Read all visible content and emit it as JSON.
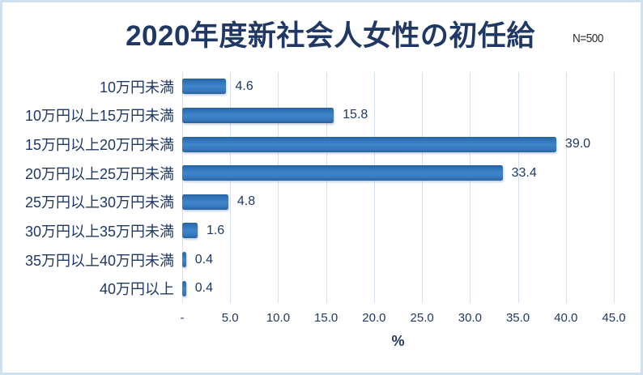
{
  "chart_data": {
    "type": "bar",
    "orientation": "horizontal",
    "title": "2020年度新社会人女性の初任給",
    "annotation": "N=500",
    "categories": [
      "10万円未満",
      "10万円以上15万円未満",
      "15万円以上20万円未満",
      "20万円以上25万円未満",
      "25万円以上30万円未満",
      "30万円以上35万円未満",
      "35万円以上40万円未満",
      "40万円以上"
    ],
    "values": [
      4.6,
      15.8,
      39.0,
      33.4,
      4.8,
      1.6,
      0.4,
      0.4
    ],
    "value_labels": [
      "4.6",
      "15.8",
      "39.0",
      "33.4",
      "4.8",
      "1.6",
      "0.4",
      "0.4"
    ],
    "xlabel": "%",
    "xlim": [
      0,
      45
    ],
    "x_ticks": [
      "-",
      "5.0",
      "10.0",
      "15.0",
      "20.0",
      "25.0",
      "30.0",
      "35.0",
      "40.0",
      "45.0"
    ],
    "grid": "vertical-only",
    "legend": "none",
    "colors": {
      "bar": "#2e74b5",
      "text": "#1f3864",
      "gridline": "#d6e0ec",
      "chart_border": "#cfe0ef",
      "annotation_text": "#2b2b2b"
    }
  }
}
